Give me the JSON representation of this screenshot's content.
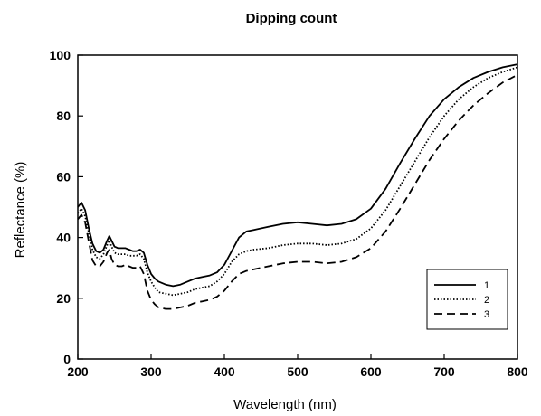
{
  "chart_data": {
    "type": "line",
    "title": "Dipping count",
    "xlabel": "Wavelength (nm)",
    "ylabel": "Reflectance (%)",
    "xlim": [
      200,
      800
    ],
    "ylim": [
      0,
      100
    ],
    "xticks": [
      200,
      300,
      400,
      500,
      600,
      700,
      800
    ],
    "yticks": [
      0,
      20,
      40,
      60,
      80,
      100
    ],
    "grid": false,
    "legend_position": "bottom-right",
    "series": [
      {
        "name": "1",
        "line_style": "solid",
        "color": "#000000",
        "points": [
          [
            200,
            50
          ],
          [
            205,
            51.5
          ],
          [
            210,
            49
          ],
          [
            215,
            43
          ],
          [
            220,
            38
          ],
          [
            225,
            35.5
          ],
          [
            230,
            35
          ],
          [
            235,
            36
          ],
          [
            240,
            39
          ],
          [
            243,
            40.5
          ],
          [
            246,
            39
          ],
          [
            250,
            37
          ],
          [
            255,
            36.5
          ],
          [
            260,
            36.5
          ],
          [
            265,
            36.5
          ],
          [
            270,
            36
          ],
          [
            275,
            35.5
          ],
          [
            280,
            35.5
          ],
          [
            285,
            36
          ],
          [
            290,
            35
          ],
          [
            295,
            31
          ],
          [
            300,
            28
          ],
          [
            305,
            26.5
          ],
          [
            310,
            25.5
          ],
          [
            320,
            24.5
          ],
          [
            330,
            24
          ],
          [
            340,
            24.5
          ],
          [
            350,
            25.5
          ],
          [
            360,
            26.5
          ],
          [
            370,
            27
          ],
          [
            380,
            27.5
          ],
          [
            390,
            28.5
          ],
          [
            400,
            31
          ],
          [
            410,
            35.5
          ],
          [
            420,
            40
          ],
          [
            430,
            42
          ],
          [
            440,
            42.5
          ],
          [
            460,
            43.5
          ],
          [
            480,
            44.5
          ],
          [
            500,
            45
          ],
          [
            520,
            44.5
          ],
          [
            540,
            44
          ],
          [
            560,
            44.5
          ],
          [
            580,
            46
          ],
          [
            600,
            49.5
          ],
          [
            620,
            56
          ],
          [
            640,
            64.5
          ],
          [
            660,
            72.5
          ],
          [
            680,
            80
          ],
          [
            700,
            85.5
          ],
          [
            720,
            89.5
          ],
          [
            740,
            92.5
          ],
          [
            760,
            94.5
          ],
          [
            780,
            96
          ],
          [
            800,
            97
          ]
        ]
      },
      {
        "name": "2",
        "line_style": "dotted",
        "color": "#000000",
        "points": [
          [
            200,
            48
          ],
          [
            205,
            49.5
          ],
          [
            210,
            47
          ],
          [
            215,
            41.5
          ],
          [
            220,
            36
          ],
          [
            225,
            33.5
          ],
          [
            230,
            33
          ],
          [
            235,
            34.5
          ],
          [
            240,
            37.5
          ],
          [
            243,
            39
          ],
          [
            246,
            37
          ],
          [
            250,
            35
          ],
          [
            255,
            34.5
          ],
          [
            260,
            34.5
          ],
          [
            265,
            34.5
          ],
          [
            270,
            34
          ],
          [
            275,
            34
          ],
          [
            280,
            34
          ],
          [
            285,
            34.5
          ],
          [
            290,
            33
          ],
          [
            295,
            28.5
          ],
          [
            300,
            25.5
          ],
          [
            305,
            23.5
          ],
          [
            310,
            22
          ],
          [
            320,
            21.5
          ],
          [
            330,
            21
          ],
          [
            340,
            21.5
          ],
          [
            350,
            22
          ],
          [
            360,
            23
          ],
          [
            370,
            23.5
          ],
          [
            380,
            24
          ],
          [
            390,
            25.5
          ],
          [
            400,
            28
          ],
          [
            410,
            32
          ],
          [
            420,
            34.5
          ],
          [
            430,
            35.5
          ],
          [
            440,
            36
          ],
          [
            460,
            36.5
          ],
          [
            480,
            37.5
          ],
          [
            500,
            38
          ],
          [
            520,
            38
          ],
          [
            540,
            37.5
          ],
          [
            560,
            38
          ],
          [
            580,
            39.5
          ],
          [
            600,
            43
          ],
          [
            620,
            49
          ],
          [
            640,
            57
          ],
          [
            660,
            65
          ],
          [
            680,
            73
          ],
          [
            700,
            80
          ],
          [
            720,
            85.5
          ],
          [
            740,
            89.5
          ],
          [
            760,
            92.5
          ],
          [
            780,
            94.5
          ],
          [
            800,
            96
          ]
        ]
      },
      {
        "name": "3",
        "line_style": "dashed",
        "color": "#000000",
        "points": [
          [
            200,
            46
          ],
          [
            205,
            47.5
          ],
          [
            210,
            45
          ],
          [
            215,
            38.5
          ],
          [
            220,
            32.5
          ],
          [
            225,
            30.5
          ],
          [
            230,
            30.5
          ],
          [
            235,
            32
          ],
          [
            240,
            35
          ],
          [
            243,
            36
          ],
          [
            246,
            33
          ],
          [
            250,
            31
          ],
          [
            255,
            30.5
          ],
          [
            260,
            30.5
          ],
          [
            265,
            31
          ],
          [
            270,
            30.5
          ],
          [
            275,
            30
          ],
          [
            280,
            30
          ],
          [
            285,
            30.5
          ],
          [
            290,
            28
          ],
          [
            295,
            22.5
          ],
          [
            300,
            19.5
          ],
          [
            305,
            18
          ],
          [
            310,
            17
          ],
          [
            320,
            16.5
          ],
          [
            330,
            16.5
          ],
          [
            340,
            17
          ],
          [
            350,
            17.5
          ],
          [
            360,
            18.5
          ],
          [
            370,
            19
          ],
          [
            380,
            19.5
          ],
          [
            390,
            20.5
          ],
          [
            400,
            22.5
          ],
          [
            410,
            25.5
          ],
          [
            420,
            28
          ],
          [
            430,
            29
          ],
          [
            440,
            29.5
          ],
          [
            460,
            30.5
          ],
          [
            480,
            31.5
          ],
          [
            500,
            32
          ],
          [
            520,
            32
          ],
          [
            540,
            31.5
          ],
          [
            560,
            32
          ],
          [
            580,
            33.5
          ],
          [
            600,
            36.5
          ],
          [
            620,
            42
          ],
          [
            640,
            49.5
          ],
          [
            660,
            57.5
          ],
          [
            680,
            65.5
          ],
          [
            700,
            72.5
          ],
          [
            720,
            78.5
          ],
          [
            740,
            83.5
          ],
          [
            760,
            87.5
          ],
          [
            780,
            91
          ],
          [
            800,
            93.5
          ]
        ]
      }
    ]
  }
}
